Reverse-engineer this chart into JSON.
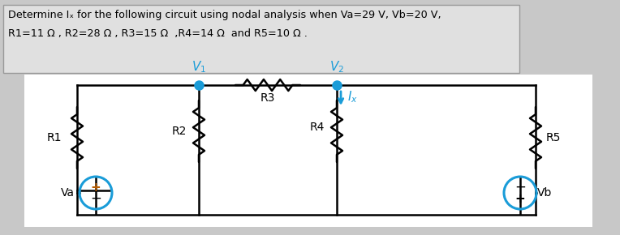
{
  "title_line1": "Determine Iₓ for the following circuit using nodal analysis when Va=29 V, Vb=20 V,",
  "title_line2": "R1=11 Ω , R2=28 Ω , R3=15 Ω  ,R4=14 Ω  and R5=10 Ω .",
  "bg_color": "#c8c8c8",
  "text_box_color": "#e0e0e0",
  "circuit_bg": "#ffffff",
  "wire_color": "#000000",
  "node_color": "#1a9cd8",
  "source_color": "#1a9cd8",
  "text_color": "#000000",
  "Va_plus_color": "#b85c00",
  "Vb_minus_color": "#000000"
}
